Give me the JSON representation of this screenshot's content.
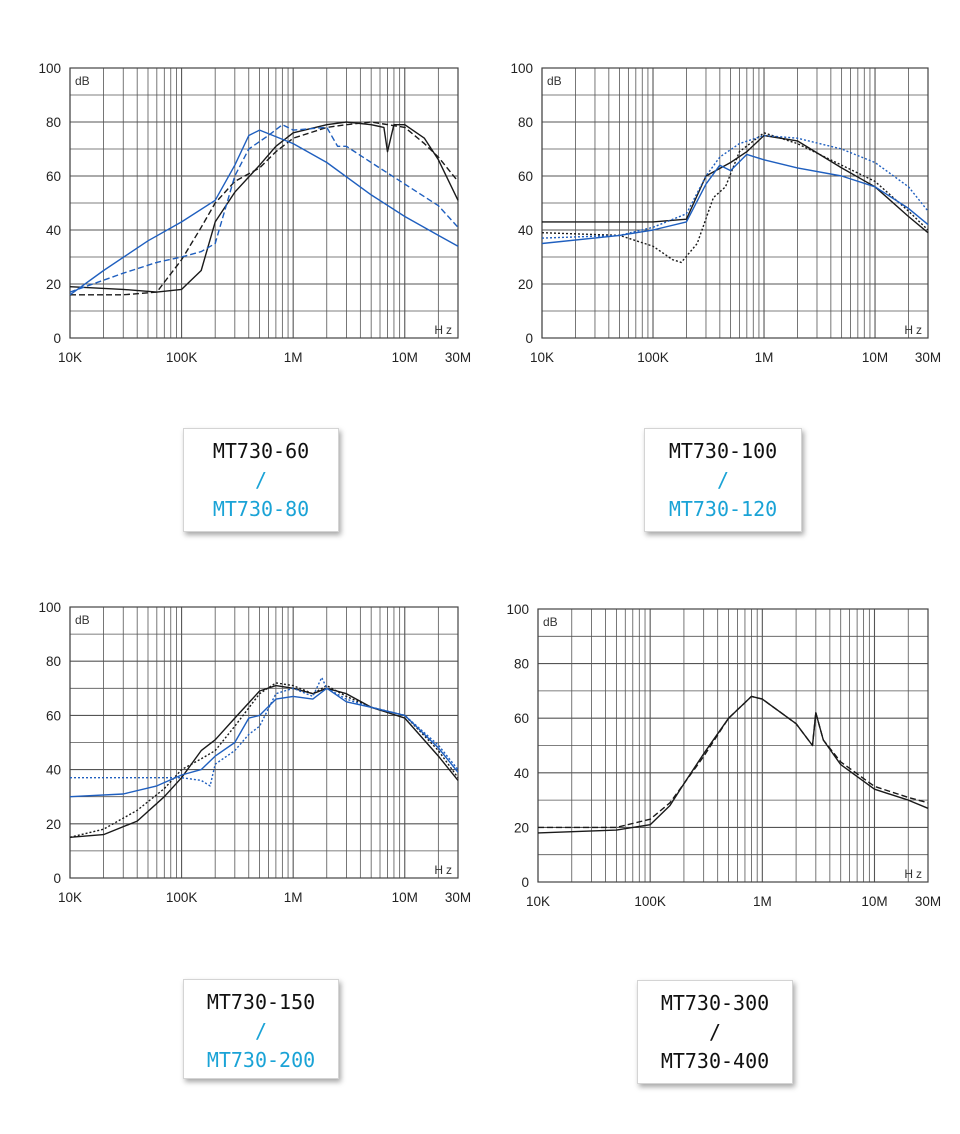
{
  "colors": {
    "black": "#1a1a1a",
    "blue": "#1f5fbf",
    "label_blue": "#1aa3d6"
  },
  "labels": [
    {
      "line1": "MT730-60",
      "sep": "/",
      "line2": "MT730-80",
      "style": "blue"
    },
    {
      "line1": "MT730-100",
      "sep": "/",
      "line2": "MT730-120",
      "style": "blue"
    },
    {
      "line1": "MT730-150",
      "sep": "/",
      "line2": "MT730-200",
      "style": "blue"
    },
    {
      "line1": "MT730-300",
      "sep": "/",
      "line2": "MT730-400",
      "style": "black"
    }
  ],
  "chart_data": [
    {
      "type": "line",
      "x_scale": "log",
      "xlim": [
        "10K",
        "30M"
      ],
      "ylim": [
        0,
        100
      ],
      "ylabel": "dB",
      "xlabel": "Hz",
      "x_ticks": [
        "10K",
        "100K",
        "1M",
        "10M",
        "30M"
      ],
      "y_ticks": [
        "0",
        "20",
        "40",
        "60",
        "80",
        "100"
      ],
      "grid": true,
      "series": [
        {
          "color": "black",
          "dash": "solid",
          "x": [
            10000,
            30000,
            60000,
            100000,
            150000,
            200000,
            300000,
            500000,
            700000,
            1000000,
            2000000,
            3000000,
            5000000,
            6500000,
            7000000,
            8000000,
            10000000,
            15000000,
            20000000,
            30000000
          ],
          "y": [
            19,
            18,
            17,
            18,
            25,
            43,
            54,
            64,
            71,
            76,
            79,
            80,
            79,
            78,
            69,
            79,
            79,
            74,
            66,
            51
          ]
        },
        {
          "color": "black",
          "dash": "dashed",
          "x": [
            10000,
            30000,
            60000,
            100000,
            150000,
            200000,
            300000,
            500000,
            700000,
            1000000,
            2000000,
            3000000,
            5000000,
            10000000,
            15000000,
            20000000,
            30000000
          ],
          "y": [
            16,
            16,
            17,
            29,
            41,
            50,
            58,
            63,
            69,
            74,
            78,
            79,
            80,
            78,
            72,
            67,
            58
          ]
        },
        {
          "color": "blue",
          "dash": "solid",
          "x": [
            10000,
            20000,
            50000,
            100000,
            200000,
            300000,
            400000,
            500000,
            1000000,
            2000000,
            5000000,
            10000000,
            20000000,
            30000000
          ],
          "y": [
            16,
            25,
            36,
            43,
            51,
            64,
            75,
            77,
            72,
            65,
            53,
            45,
            38,
            34
          ]
        },
        {
          "color": "blue",
          "dash": "dashed",
          "x": [
            10000,
            30000,
            60000,
            100000,
            150000,
            200000,
            300000,
            400000,
            600000,
            800000,
            1000000,
            2000000,
            2500000,
            3000000,
            5000000,
            10000000,
            20000000,
            30000000
          ],
          "y": [
            17,
            24,
            28,
            30,
            32,
            35,
            60,
            70,
            75,
            79,
            77,
            78,
            71,
            71,
            65,
            57,
            49,
            41
          ]
        }
      ]
    },
    {
      "type": "line",
      "x_scale": "log",
      "xlim": [
        "10K",
        "30M"
      ],
      "ylim": [
        0,
        100
      ],
      "ylabel": "dB",
      "xlabel": "Hz",
      "x_ticks": [
        "10K",
        "100K",
        "1M",
        "10M",
        "30M"
      ],
      "y_ticks": [
        "0",
        "20",
        "40",
        "60",
        "80",
        "100"
      ],
      "grid": true,
      "series": [
        {
          "color": "black",
          "dash": "solid",
          "x": [
            10000,
            50000,
            100000,
            200000,
            300000,
            500000,
            700000,
            1000000,
            2000000,
            5000000,
            10000000,
            20000000,
            30000000
          ],
          "y": [
            43,
            43,
            43,
            44,
            60,
            65,
            69,
            75,
            73,
            63,
            56,
            45,
            39
          ]
        },
        {
          "color": "black",
          "dash": "dotted",
          "x": [
            10000,
            50000,
            100000,
            150000,
            180000,
            250000,
            350000,
            450000,
            600000,
            1000000,
            2000000,
            5000000,
            10000000,
            20000000,
            30000000
          ],
          "y": [
            39,
            38,
            34,
            29,
            28,
            35,
            52,
            56,
            69,
            76,
            72,
            64,
            58,
            47,
            40
          ]
        },
        {
          "color": "blue",
          "dash": "solid",
          "x": [
            10000,
            50000,
            100000,
            200000,
            300000,
            400000,
            500000,
            700000,
            1000000,
            2000000,
            5000000,
            10000000,
            20000000,
            30000000
          ],
          "y": [
            35,
            38,
            40,
            43,
            57,
            64,
            62,
            68,
            66,
            63,
            60,
            56,
            48,
            42
          ]
        },
        {
          "color": "blue",
          "dash": "dotted",
          "x": [
            10000,
            50000,
            100000,
            200000,
            300000,
            400000,
            600000,
            1000000,
            2000000,
            5000000,
            10000000,
            20000000,
            30000000
          ],
          "y": [
            37,
            38,
            41,
            46,
            60,
            67,
            72,
            75,
            74,
            70,
            65,
            56,
            47
          ]
        }
      ]
    },
    {
      "type": "line",
      "x_scale": "log",
      "xlim": [
        "10K",
        "30M"
      ],
      "ylim": [
        0,
        100
      ],
      "ylabel": "dB",
      "xlabel": "Hz",
      "x_ticks": [
        "10K",
        "100K",
        "1M",
        "10M",
        "30M"
      ],
      "y_ticks": [
        "0",
        "20",
        "40",
        "60",
        "80",
        "100"
      ],
      "grid": true,
      "series": [
        {
          "color": "black",
          "dash": "solid",
          "x": [
            10000,
            20000,
            40000,
            70000,
            100000,
            150000,
            200000,
            300000,
            500000,
            700000,
            1000000,
            1500000,
            2000000,
            3000000,
            5000000,
            10000000,
            20000000,
            30000000
          ],
          "y": [
            15,
            16,
            21,
            30,
            37,
            47,
            51,
            59,
            69,
            71,
            70,
            68,
            70,
            68,
            63,
            59,
            45,
            36
          ]
        },
        {
          "color": "black",
          "dash": "dotted",
          "x": [
            10000,
            20000,
            40000,
            70000,
            100000,
            150000,
            200000,
            300000,
            500000,
            700000,
            1000000,
            1500000,
            2000000,
            3000000,
            5000000,
            10000000,
            20000000,
            30000000
          ],
          "y": [
            15,
            18,
            25,
            33,
            40,
            44,
            47,
            56,
            68,
            72,
            71,
            68,
            71,
            67,
            63,
            60,
            47,
            37
          ]
        },
        {
          "color": "blue",
          "dash": "solid",
          "x": [
            10000,
            30000,
            60000,
            100000,
            150000,
            200000,
            300000,
            400000,
            500000,
            700000,
            1000000,
            1500000,
            2000000,
            3000000,
            5000000,
            10000000,
            20000000,
            30000000
          ],
          "y": [
            30,
            31,
            34,
            38,
            40,
            45,
            50,
            59,
            60,
            66,
            67,
            66,
            70,
            65,
            63,
            60,
            48,
            39
          ]
        },
        {
          "color": "blue",
          "dash": "dotted",
          "x": [
            10000,
            30000,
            100000,
            150000,
            180000,
            200000,
            300000,
            400000,
            500000,
            700000,
            1000000,
            1500000,
            1800000,
            2000000,
            3000000,
            5000000,
            10000000,
            20000000,
            30000000
          ],
          "y": [
            37,
            37,
            37,
            36,
            34,
            42,
            47,
            53,
            56,
            68,
            70,
            67,
            74,
            70,
            66,
            63,
            60,
            49,
            40
          ]
        }
      ]
    },
    {
      "type": "line",
      "x_scale": "log",
      "xlim": [
        "10K",
        "30M"
      ],
      "ylim": [
        0,
        100
      ],
      "ylabel": "dB",
      "xlabel": "Hz",
      "x_ticks": [
        "10K",
        "100K",
        "1M",
        "10M",
        "30M"
      ],
      "y_ticks": [
        "0",
        "20",
        "40",
        "60",
        "80",
        "100"
      ],
      "grid": true,
      "series": [
        {
          "color": "black",
          "dash": "solid",
          "x": [
            10000,
            50000,
            100000,
            150000,
            200000,
            300000,
            500000,
            800000,
            1000000,
            2000000,
            2800000,
            3000000,
            3500000,
            5000000,
            10000000,
            20000000,
            30000000
          ],
          "y": [
            18,
            19,
            21,
            28,
            36,
            47,
            60,
            68,
            67,
            58,
            50,
            62,
            52,
            43,
            34,
            30,
            27
          ]
        },
        {
          "color": "black",
          "dash": "dashed",
          "x": [
            10000,
            50000,
            100000,
            150000,
            200000,
            300000,
            500000,
            800000,
            1000000,
            2000000,
            2800000,
            3000000,
            3500000,
            5000000,
            10000000,
            20000000,
            30000000
          ],
          "y": [
            20,
            20,
            23,
            29,
            36,
            46,
            60,
            68,
            67,
            58,
            50,
            62,
            52,
            44,
            35,
            31,
            29
          ]
        }
      ]
    }
  ]
}
